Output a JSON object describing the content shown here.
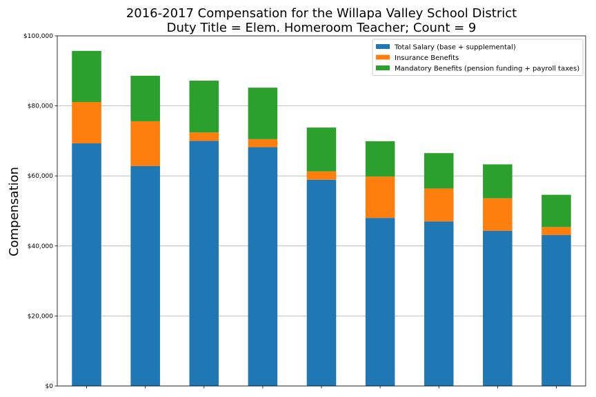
{
  "chart_data": {
    "type": "bar",
    "stacked": true,
    "title": "2016-2017 Compensation for the Willapa Valley School District",
    "subtitle": "Duty Title = Elem. Homeroom Teacher; Count = 9",
    "xlabel": "",
    "ylabel": "Compensation",
    "ylim": [
      0,
      100000
    ],
    "yticks": [
      0,
      20000,
      40000,
      60000,
      80000,
      100000
    ],
    "ytick_labels": [
      "$0",
      "$20,000",
      "$40,000",
      "$60,000",
      "$80,000",
      "$100,000"
    ],
    "grid": "horizontal",
    "legend_position": "top-right",
    "categories": [
      "",
      "",
      "",
      "",
      "",
      "",
      "",
      "",
      ""
    ],
    "series": [
      {
        "name": "Total Salary (base + supplemental)",
        "color": "#1f77b4",
        "values": [
          69300,
          62800,
          70000,
          68200,
          58900,
          48000,
          47000,
          44300,
          43100
        ]
      },
      {
        "name": "Insurance Benefits",
        "color": "#ff7f0e",
        "values": [
          11800,
          12800,
          2400,
          2300,
          2400,
          11800,
          9400,
          9300,
          2300
        ]
      },
      {
        "name": "Mandatory Benefits (pension funding + payroll taxes)",
        "color": "#2ca02c",
        "values": [
          14600,
          13000,
          14800,
          14700,
          12500,
          10100,
          10100,
          9700,
          9200
        ]
      }
    ]
  }
}
